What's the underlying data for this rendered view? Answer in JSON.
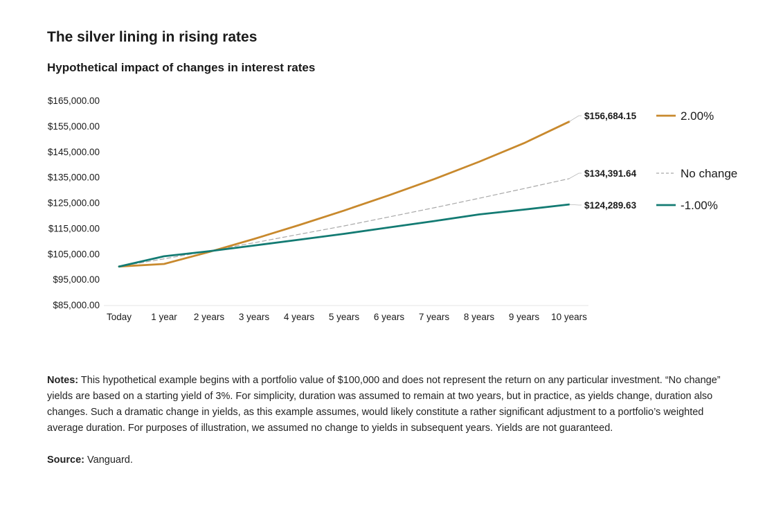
{
  "header": {
    "title": "The silver lining in rising rates",
    "subtitle": "Hypothetical impact of changes in interest rates"
  },
  "chart_data": {
    "type": "line",
    "title": "The silver lining in rising rates",
    "subtitle": "Hypothetical impact of changes in interest rates",
    "xlabel": "",
    "ylabel": "",
    "categories": [
      "Today",
      "1 year",
      "2 years",
      "3 years",
      "4 years",
      "5 years",
      "6 years",
      "7 years",
      "8 years",
      "9 years",
      "10 years"
    ],
    "y_ticks": [
      "$165,000.00",
      "$155,000.00",
      "$145,000.00",
      "$135,000.00",
      "$125,000.00",
      "$115,000.00",
      "$105,000.00",
      "$95,000.00",
      "$85,000.00"
    ],
    "ylim": [
      85000,
      165000
    ],
    "grid": false,
    "legend_position": "right",
    "series": [
      {
        "name": "2.00%",
        "color": "#c8892d",
        "style": "solid",
        "end_label": "$156,684.15",
        "values": [
          100000,
          101000,
          105700,
          110800,
          116200,
          121900,
          127900,
          134200,
          141000,
          148300,
          156684.15
        ]
      },
      {
        "name": "No change",
        "color": "#a8a8a8",
        "style": "dashed",
        "end_label": "$134,391.64",
        "values": [
          100000,
          103000,
          106100,
          109300,
          112600,
          115900,
          119400,
          123000,
          126700,
          130500,
          134391.64
        ]
      },
      {
        "name": "-1.00%",
        "color": "#137b73",
        "style": "solid",
        "end_label": "$124,289.63",
        "values": [
          100000,
          104000,
          106000,
          108200,
          110500,
          112800,
          115300,
          117800,
          120400,
          122300,
          124289.63
        ]
      }
    ]
  },
  "notes": {
    "label": "Notes:",
    "text": "This hypothetical example begins with a portfolio value of $100,000 and does not represent the return on any particular investment.  “No change” yields are based on a starting yield of 3%. For simplicity, duration was assumed to remain at two years, but in practice, as yields change, duration also changes. Such a dramatic change in yields, as this example assumes, would likely constitute a rather significant adjustment to a portfolio’s weighted average duration. For purposes of illustration, we assumed no change to yields in subsequent years. Yields are not guaranteed."
  },
  "source": {
    "label": "Source:",
    "text": "Vanguard."
  }
}
